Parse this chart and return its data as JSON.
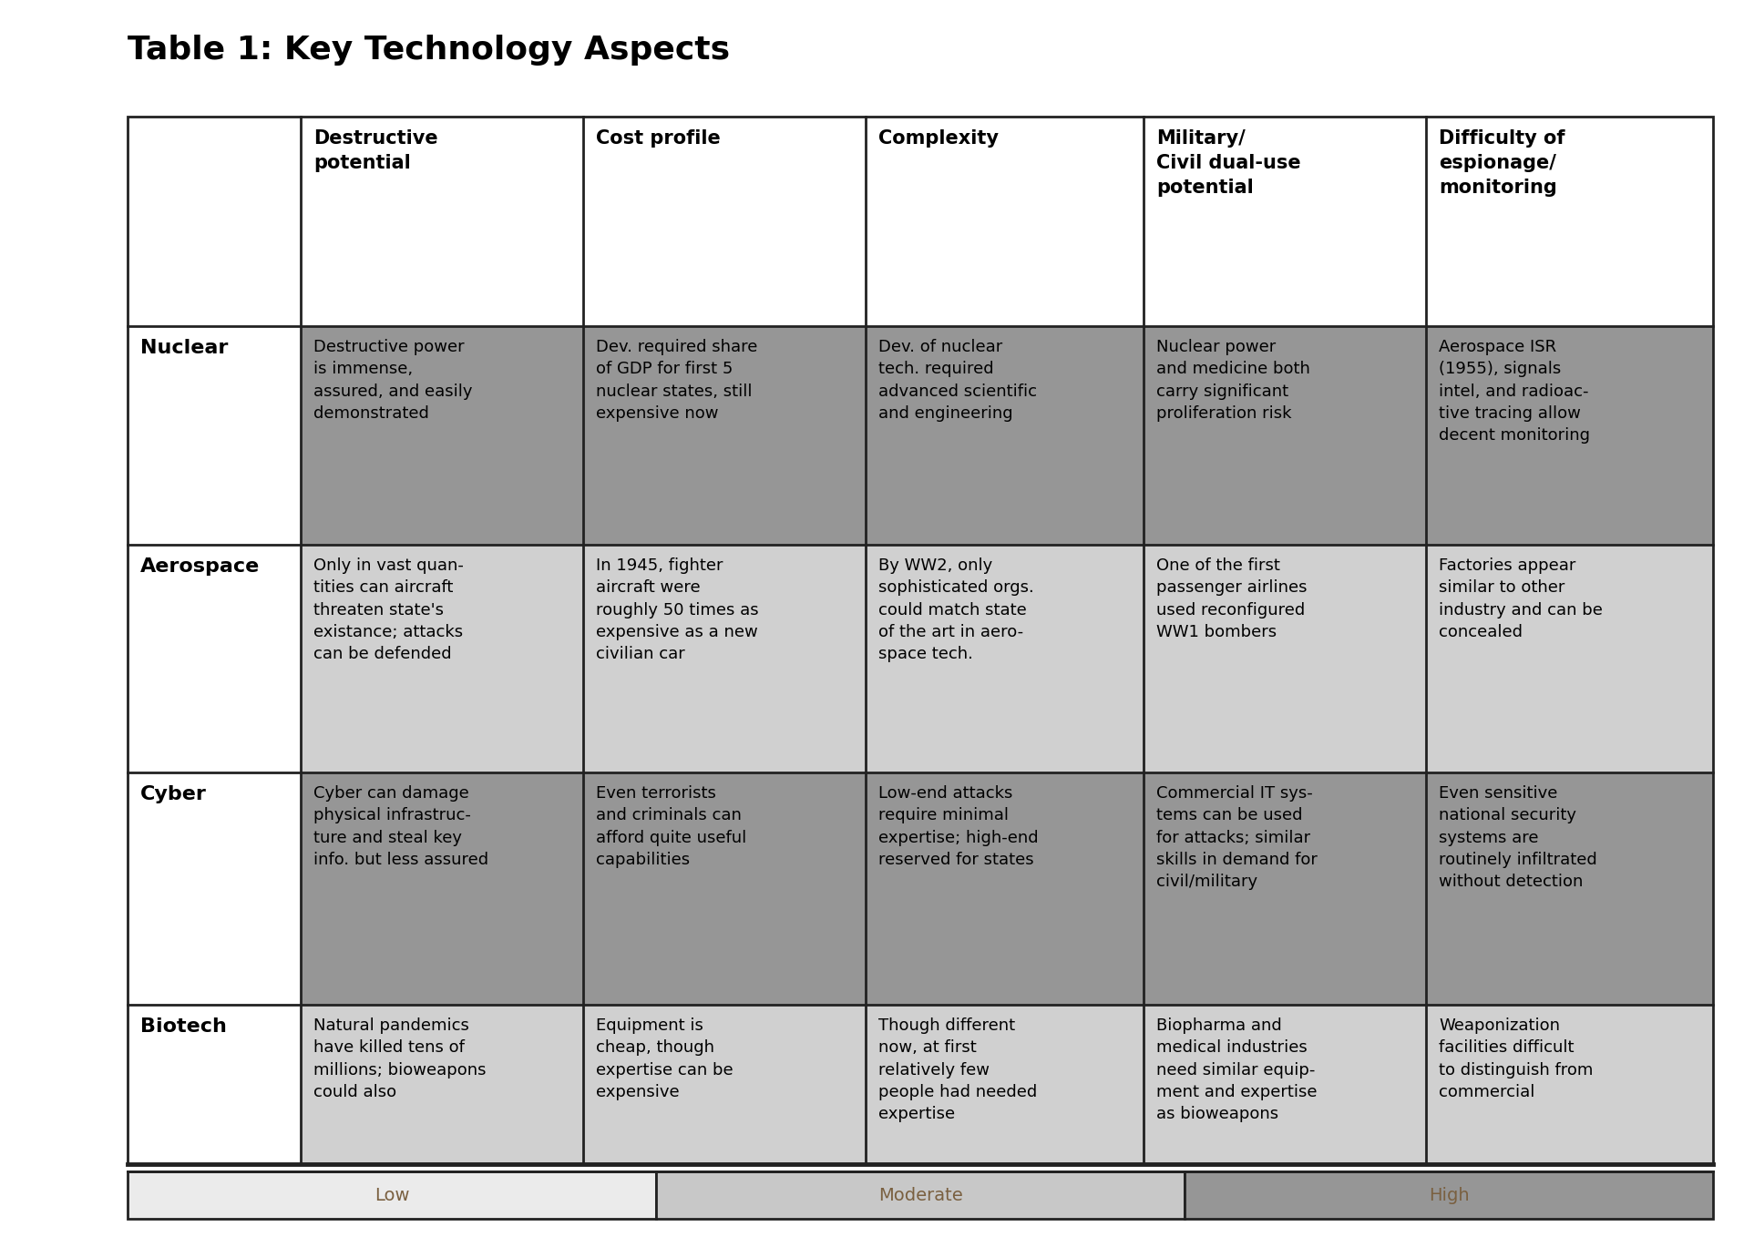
{
  "title": "Table 1: Key Technology Aspects",
  "col_headers": [
    "Destructive\npotential",
    "Cost profile",
    "Complexity",
    "Military/\nCivil dual-use\npotential",
    "Difficulty of\nespionage/\nmonitoring"
  ],
  "row_headers": [
    "Nuclear",
    "Aerospace",
    "Cyber",
    "Biotech"
  ],
  "cells": [
    [
      "Destructive power\nis immense,\nassured, and easily\ndemonstrated",
      "Dev. required share\nof GDP for first 5\nnuclear states, still\nexpensive now",
      "Dev. of nuclear\ntech. required\nadvanced scientific\nand engineering",
      "Nuclear power\nand medicine both\ncarry significant\nproliferation risk",
      "Aerospace ISR\n(1955), signals\nintel, and radioac-\ntive tracing allow\ndecent monitoring"
    ],
    [
      "Only in vast quan-\ntities can aircraft\nthreaten state's\nexistance; attacks\ncan be defended",
      "In 1945, fighter\naircraft were\nroughly 50 times as\nexpensive as a new\ncivilian car",
      "By WW2, only\nsophisticated orgs.\ncould match state\nof the art in aero-\nspace tech.",
      "One of the first\npassenger airlines\nused reconfigured\nWW1 bombers",
      "Factories appear\nsimilar to other\nindustry and can be\nconcealed"
    ],
    [
      "Cyber can damage\nphysical infrastruc-\nture and steal key\ninfo. but less assured",
      "Even terrorists\nand criminals can\nafford quite useful\ncapabilities",
      "Low-end attacks\nrequire minimal\nexpertise; high-end\nreserved for states",
      "Commercial IT sys-\ntems can be used\nfor attacks; similar\nskills in demand for\ncivil/military",
      "Even sensitive\nnational security\nsystems are\nroutinely infiltrated\nwithout detection"
    ],
    [
      "Natural pandemics\nhave killed tens of\nmillions; bioweapons\ncould also",
      "Equipment is\ncheap, though\nexpertise can be\nexpensive",
      "Though different\nnow, at first\nrelatively few\npeople had needed\nexpertise",
      "Biopharma and\nmedical industries\nneed similar equip-\nment and expertise\nas bioweapons",
      "Weaponization\nfacilities difficult\nto distinguish from\ncommercial"
    ]
  ],
  "cell_colors": [
    [
      "#969696",
      "#969696",
      "#969696",
      "#969696",
      "#969696"
    ],
    [
      "#d0d0d0",
      "#d0d0d0",
      "#d0d0d0",
      "#d0d0d0",
      "#d0d0d0"
    ],
    [
      "#969696",
      "#969696",
      "#969696",
      "#969696",
      "#969696"
    ],
    [
      "#d0d0d0",
      "#d0d0d0",
      "#d0d0d0",
      "#d0d0d0",
      "#d0d0d0"
    ]
  ],
  "header_bg": "#ffffff",
  "row_header_bg": "#ffffff",
  "legend_labels": [
    "Low",
    "Moderate",
    "High"
  ],
  "legend_colors": [
    "#ebebeb",
    "#c8c8c8",
    "#969696"
  ],
  "title_fontsize": 26,
  "header_fontsize": 15,
  "cell_fontsize": 13,
  "row_header_fontsize": 16
}
